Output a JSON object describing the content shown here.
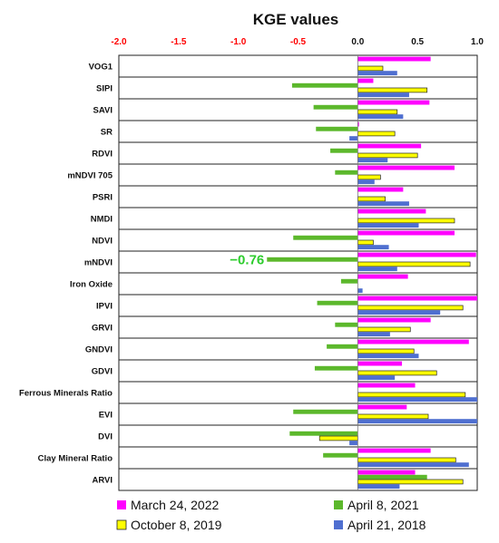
{
  "chart_data": {
    "type": "bar",
    "orientation": "horizontal",
    "title": "KGE values",
    "xlim": [
      -2.0,
      1.0
    ],
    "xticks": [
      "-2.0",
      "-1.5",
      "-1.0",
      "-0.5",
      "0.0",
      "0.5",
      "1.0"
    ],
    "negative_tick_color": "#ff0000",
    "grid": false,
    "legend_position": "bottom",
    "categories": [
      "VOG1",
      "SIPI",
      "SAVI",
      "SR",
      "RDVI",
      "mNDVI 705",
      "PSRI",
      "NMDI",
      "NDVI",
      "mNDVI",
      "Iron Oxide",
      "IPVI",
      "GRVI",
      "GNDVI",
      "GDVI",
      "Ferrous Minerals Ratio",
      "EVI",
      "DVI",
      "Clay Mineral Ratio",
      "ARVI"
    ],
    "series": [
      {
        "name": "March 24, 2022",
        "color": "#ff00ff",
        "values": [
          0.61,
          0.13,
          0.6,
          0.01,
          0.53,
          0.81,
          0.38,
          0.57,
          0.81,
          0.99,
          0.42,
          1.0,
          0.61,
          0.93,
          0.37,
          0.48,
          0.41,
          0.0,
          0.61,
          0.48
        ]
      },
      {
        "name": "April 8, 2021",
        "color": "#5cb82c",
        "values": [
          0.0,
          -0.55,
          -0.37,
          -0.35,
          -0.23,
          -0.19,
          0.0,
          0.0,
          -0.54,
          -0.76,
          -0.14,
          -0.34,
          -0.19,
          -0.26,
          -0.36,
          0.0,
          -0.54,
          -0.57,
          -0.29,
          0.58
        ]
      },
      {
        "name": "October 8, 2019",
        "color": "#ffff00",
        "values": [
          0.21,
          0.58,
          0.33,
          0.31,
          0.5,
          0.19,
          0.23,
          0.81,
          0.13,
          0.94,
          0.0,
          0.88,
          0.44,
          0.47,
          0.66,
          0.9,
          0.59,
          -0.32,
          0.82,
          0.88
        ]
      },
      {
        "name": "April 21, 2018",
        "color": "#4f6fd0",
        "values": [
          0.33,
          0.43,
          0.38,
          -0.07,
          0.25,
          0.14,
          0.43,
          0.51,
          0.26,
          0.33,
          0.04,
          0.69,
          0.27,
          0.51,
          0.31,
          1.0,
          1.0,
          -0.07,
          0.93,
          0.35
        ]
      }
    ],
    "annotations": [
      {
        "text": "−0.76",
        "category": "mNDVI",
        "series": "April 8, 2021",
        "color": "#2ecc2e"
      }
    ]
  }
}
